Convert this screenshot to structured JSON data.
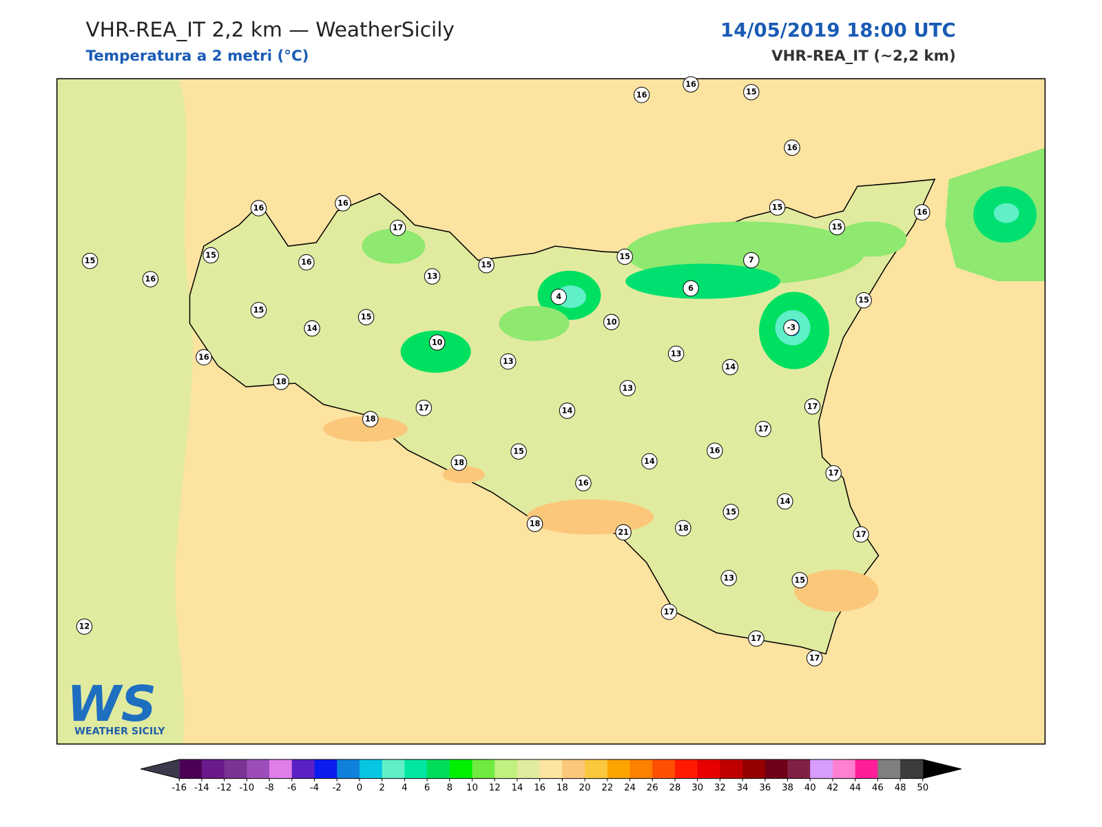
{
  "header": {
    "title": "VHR-REA_IT 2,2 km — WeatherSicily",
    "subtitle": "Temperatura a 2 metri (°C)",
    "date": "14/05/2019 18:00 UTC",
    "model": "VHR-REA_IT (~2,2 km)"
  },
  "logo": {
    "letters": "WS",
    "name": "WEATHER SICILY"
  },
  "stations": [
    16,
    16,
    15,
    16,
    16,
    16,
    17,
    15,
    16,
    15,
    15,
    15,
    16,
    13,
    15,
    15,
    7,
    16,
    15,
    4,
    6,
    15,
    15,
    14,
    10,
    -3,
    10,
    16,
    13,
    13,
    14,
    18,
    13,
    17,
    14,
    17,
    18,
    17,
    15,
    16,
    14,
    18,
    17,
    16,
    14,
    15,
    18,
    18,
    21,
    17,
    13,
    15,
    17,
    12,
    17,
    17
  ],
  "colorbar": {
    "ticks": [
      -16,
      -14,
      -12,
      -10,
      -8,
      -6,
      -4,
      -2,
      0,
      2,
      4,
      6,
      8,
      10,
      12,
      14,
      16,
      18,
      20,
      22,
      24,
      26,
      28,
      30,
      32,
      34,
      36,
      38,
      40,
      42,
      44,
      46,
      48,
      50
    ],
    "colors": [
      "#4b0055",
      "#6a1a8a",
      "#7b3393",
      "#9c4dba",
      "#e07de9",
      "#5b20c5",
      "#0a1cf0",
      "#1080db",
      "#05c5e0",
      "#5ff0c8",
      "#00e5a0",
      "#00dd5a",
      "#00f000",
      "#70ea40",
      "#bff080",
      "#e1eb9f",
      "#fde3a0",
      "#fbc77a",
      "#fcc93e",
      "#fea400",
      "#fe8000",
      "#fe5000",
      "#ff1a00",
      "#e80000",
      "#c00000",
      "#960000",
      "#700018",
      "#7f2046",
      "#d89cff",
      "#ff7fd0",
      "#ff1e9a",
      "#808080",
      "#3c3c3c"
    ],
    "under_color": "#3a3a4a",
    "over_color": "#000000"
  }
}
